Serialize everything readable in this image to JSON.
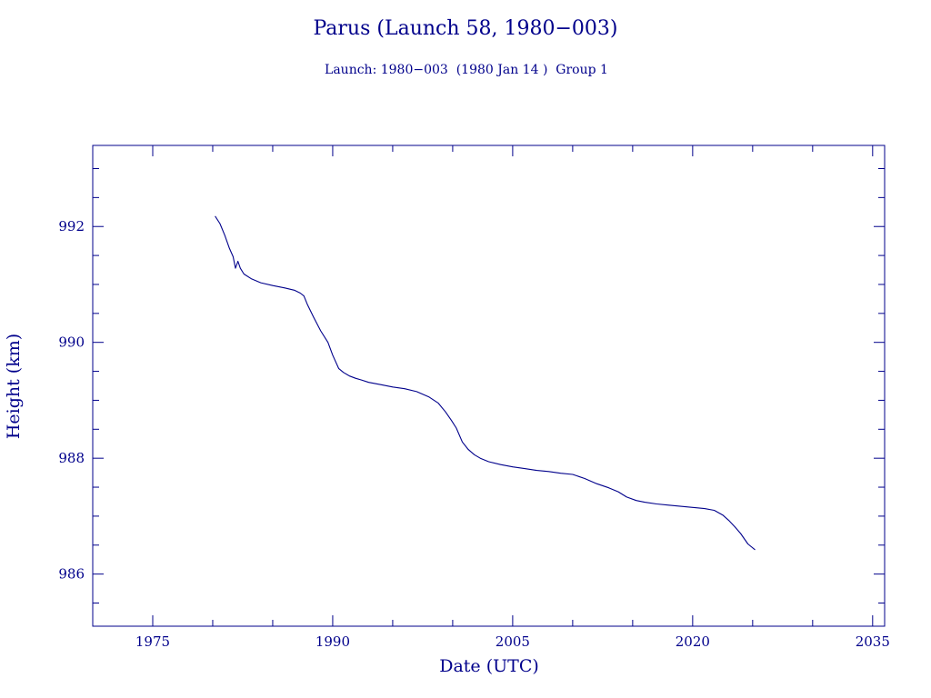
{
  "colors": {
    "ink": "#00008b",
    "background": "#ffffff"
  },
  "chart_data": {
    "type": "line",
    "title": "Parus (Launch 58, 1980−003)",
    "subtitle": "Launch: 1980−003  (1980 Jan 14 )  Group 1",
    "xlabel": "Date (UTC)",
    "ylabel": "Height (km)",
    "xlim": [
      1970,
      2036
    ],
    "ylim": [
      985.1,
      993.4
    ],
    "xticks": [
      1975,
      1990,
      2005,
      2020,
      2035
    ],
    "xtick_labels": [
      "1975",
      "1990",
      "2005",
      "2020",
      "2035"
    ],
    "yticks": [
      986,
      988,
      990,
      992
    ],
    "ytick_labels": [
      "986",
      "988",
      "990",
      "992"
    ],
    "grid": false,
    "legend": "none",
    "series": [
      {
        "x": [
          1980.2,
          1980.6,
          1981.0,
          1981.4,
          1981.7,
          1981.9,
          1982.1,
          1982.3,
          1982.6,
          1983.2,
          1984.0,
          1985.0,
          1986.0,
          1986.8,
          1987.3,
          1987.6,
          1987.9,
          1988.4,
          1989.0,
          1989.6,
          1990.0,
          1990.5,
          1990.9,
          1991.4,
          1991.9,
          1992.4,
          1993.0,
          1994.0,
          1995.0,
          1996.0,
          1997.0,
          1998.0,
          1998.8,
          1999.4,
          1999.9,
          2000.3,
          2000.8,
          2001.3,
          2001.8,
          2002.3,
          2003.0,
          2004.0,
          2005.0,
          2006.0,
          2007.0,
          2008.0,
          2009.0,
          2010.0,
          2011.0,
          2012.0,
          2013.0,
          2013.8,
          2014.5,
          2015.3,
          2016.0,
          2017.0,
          2018.0,
          2019.0,
          2020.0,
          2021.0,
          2021.8,
          2022.5,
          2023.0,
          2023.5,
          2024.0,
          2024.6,
          2025.2
        ],
        "values": [
          992.18,
          992.05,
          991.85,
          991.62,
          991.48,
          991.28,
          991.4,
          991.28,
          991.18,
          991.1,
          991.03,
          990.98,
          990.94,
          990.9,
          990.85,
          990.8,
          990.65,
          990.44,
          990.2,
          990.0,
          989.78,
          989.55,
          989.48,
          989.42,
          989.38,
          989.35,
          989.31,
          989.27,
          989.23,
          989.2,
          989.15,
          989.06,
          988.95,
          988.8,
          988.65,
          988.52,
          988.28,
          988.15,
          988.06,
          988.0,
          987.94,
          987.89,
          987.85,
          987.82,
          987.79,
          987.77,
          987.74,
          987.72,
          987.65,
          987.56,
          987.49,
          987.42,
          987.33,
          987.27,
          987.24,
          987.21,
          987.19,
          987.17,
          987.15,
          987.13,
          987.1,
          987.02,
          986.93,
          986.82,
          986.7,
          986.52,
          986.42
        ]
      }
    ]
  }
}
